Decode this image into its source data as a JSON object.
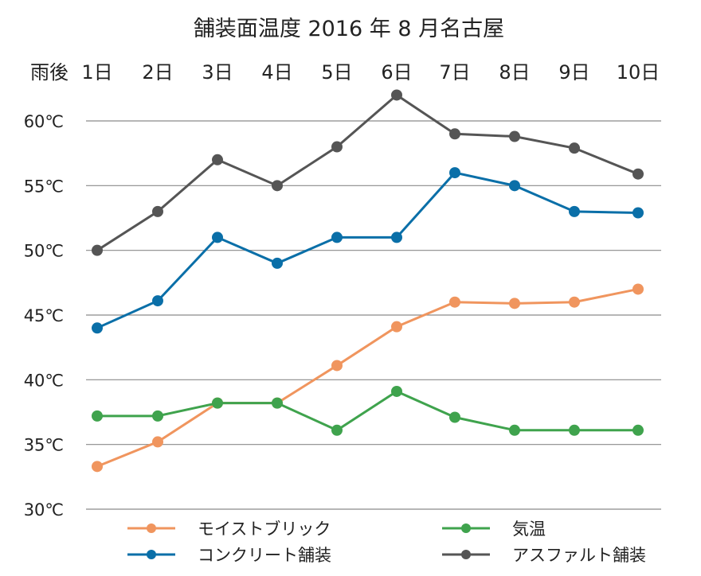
{
  "chart_data": {
    "type": "line",
    "title": "舗装面温度 2016 年 8 月名古屋",
    "x_header": "雨後",
    "categories": [
      "1日",
      "2日",
      "3日",
      "4日",
      "5日",
      "6日",
      "7日",
      "8日",
      "9日",
      "10日"
    ],
    "yticks": [
      "30℃",
      "35℃",
      "40℃",
      "45℃",
      "50℃",
      "55℃",
      "60℃"
    ],
    "ylim": [
      30,
      60
    ],
    "grid": true,
    "legend_placement": "bottom",
    "series": [
      {
        "name": "モイストブリック",
        "color": "#F0955E",
        "values": [
          33.3,
          35.2,
          38.2,
          38.2,
          41.1,
          44.1,
          46.0,
          45.9,
          46.0,
          47.0
        ]
      },
      {
        "name": "気温",
        "color": "#3FA34D",
        "values": [
          37.2,
          37.2,
          38.2,
          38.2,
          36.1,
          39.1,
          37.1,
          36.1,
          36.1,
          36.1
        ]
      },
      {
        "name": "コンクリート舗装",
        "color": "#0A6FA8",
        "values": [
          44.0,
          46.1,
          51.0,
          49.0,
          51.0,
          51.0,
          56.0,
          55.0,
          53.0,
          52.9
        ]
      },
      {
        "name": "アスファルト舗装",
        "color": "#555555",
        "values": [
          50.0,
          53.0,
          57.0,
          55.0,
          58.0,
          62.0,
          59.0,
          58.8,
          57.9,
          55.9
        ]
      }
    ]
  }
}
